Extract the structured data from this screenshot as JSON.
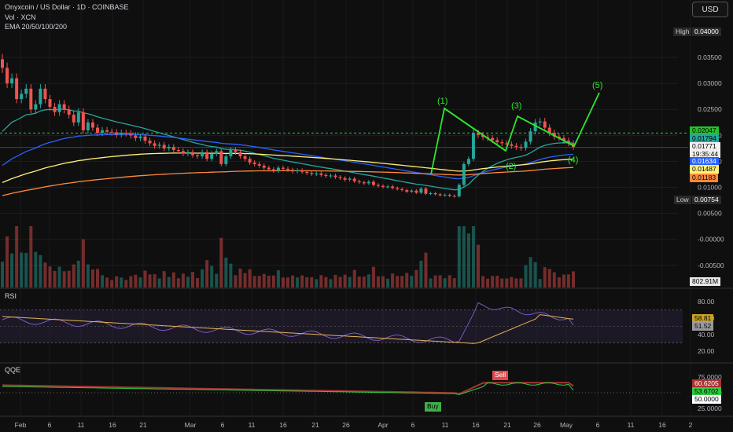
{
  "header": {
    "symbol": "Onyxcoin / US Dollar · 1D · COINBASE",
    "volume": "Vol · XCN",
    "ema": "EMA 20/50/100/200",
    "currency_button": "USD"
  },
  "price_labels": {
    "high_text": "High",
    "high_value": "0.04000",
    "low_text": "Low",
    "low_value": "0.00754",
    "last_price": "0.01771",
    "countdown": "19:35:44",
    "level_green": "0.02047",
    "ema20": "0.01794",
    "ema50": "0.01634",
    "ema100": "0.01487",
    "ema200": "0.01183",
    "volume_value": "802.91M"
  },
  "panes": {
    "rsi": {
      "label": "RSI",
      "value_a": "58.81",
      "value_b": "51.52"
    },
    "qqe": {
      "label": "QQE",
      "value_a": "60.6205",
      "value_b": "53.6702",
      "value_c": "50.0000",
      "sell_label": "Sell",
      "buy_label": "Buy"
    }
  },
  "colors": {
    "background": "#0f0f0f",
    "up": "#26a69a",
    "down": "#ef5350",
    "ema20": "#26a69a",
    "ema50": "#2962ff",
    "ema100": "#fff176",
    "ema200": "#ff8a3d",
    "wave": "#2ee62e",
    "rsi": "#7e57c2"
  },
  "chart_data": [
    {
      "type": "line",
      "name": "price",
      "title": "Onyxcoin / US Dollar · 1D · COINBASE",
      "y_ticks": [
        "0.03500",
        "0.03000",
        "0.02500",
        "0.02000",
        "0.01500",
        "0.01000",
        "0.00500",
        "-0.00000",
        "-0.00500"
      ],
      "x_ticks": [
        "Feb",
        "6",
        "11",
        "16",
        "21",
        "Mar",
        "6",
        "11",
        "16",
        "21",
        "26",
        "Apr",
        "6",
        "11",
        "16",
        "21",
        "26",
        "May",
        "6",
        "11",
        "16",
        "2"
      ],
      "ylim": [
        -0.0078,
        0.0425
      ],
      "close": [
        0.033,
        0.03,
        0.031,
        0.027,
        0.028,
        0.029,
        0.025,
        0.026,
        0.029,
        0.027,
        0.0255,
        0.0245,
        0.026,
        0.025,
        0.024,
        0.0225,
        0.0245,
        0.021,
        0.0225,
        0.0215,
        0.0205,
        0.021,
        0.0207,
        0.0206,
        0.0202,
        0.0205,
        0.0204,
        0.02,
        0.0195,
        0.0198,
        0.019,
        0.0185,
        0.018,
        0.0182,
        0.0175,
        0.0178,
        0.0172,
        0.017,
        0.0165,
        0.0168,
        0.0162,
        0.016,
        0.0168,
        0.0155,
        0.0165,
        0.017,
        0.0145,
        0.016,
        0.0172,
        0.0168,
        0.016,
        0.0155,
        0.0148,
        0.0145,
        0.0142,
        0.0138,
        0.0135,
        0.0132,
        0.0138,
        0.0136,
        0.0134,
        0.0131,
        0.0133,
        0.013,
        0.0128,
        0.0126,
        0.0127,
        0.0124,
        0.0122,
        0.0123,
        0.012,
        0.0118,
        0.0115,
        0.0117,
        0.0112,
        0.011,
        0.0108,
        0.0111,
        0.0105,
        0.0103,
        0.0101,
        0.0102,
        0.0099,
        0.0097,
        0.0095,
        0.0092,
        0.0094,
        0.009,
        0.0098,
        0.0088,
        0.0089,
        0.0087,
        0.0085,
        0.0086,
        0.0084,
        0.0083,
        0.0105,
        0.0145,
        0.0155,
        0.0205,
        0.0201,
        0.0197,
        0.0195,
        0.0191,
        0.0187,
        0.0185,
        0.0183,
        0.018,
        0.0178,
        0.0176,
        0.0188,
        0.0208,
        0.0225,
        0.0227,
        0.0215,
        0.0205,
        0.0198,
        0.0195,
        0.019,
        0.0185,
        0.0178
      ],
      "ema_series": [
        {
          "name": "EMA 20",
          "last": 0.01794
        },
        {
          "name": "EMA 50",
          "last": 0.01634
        },
        {
          "name": "EMA 100",
          "last": 0.01487
        },
        {
          "name": "EMA 200",
          "last": 0.01183
        }
      ],
      "wave_labels": [
        "(1)",
        "(2)",
        "(3)",
        "(4)",
        "(5)"
      ],
      "horizontal_line": 0.02047
    },
    {
      "type": "bar",
      "name": "volume",
      "title": "Vol · XCN",
      "last": "802.91M"
    },
    {
      "type": "line",
      "name": "RSI",
      "title": "RSI",
      "y_ticks": [
        "80.00",
        "60.00",
        "40.00",
        "20.00"
      ],
      "ylim": [
        12,
        86
      ],
      "band": [
        30,
        70
      ],
      "rsi_last": 51.52,
      "ma_last": 58.81
    },
    {
      "type": "line",
      "name": "QQE",
      "title": "QQE",
      "y_ticks": [
        "75.0000",
        "50.0000",
        "25.0000"
      ],
      "ylim": [
        20,
        80
      ],
      "signals": [
        "Sell",
        "Buy"
      ],
      "last_values": [
        60.6205,
        53.6702,
        50.0
      ]
    }
  ]
}
